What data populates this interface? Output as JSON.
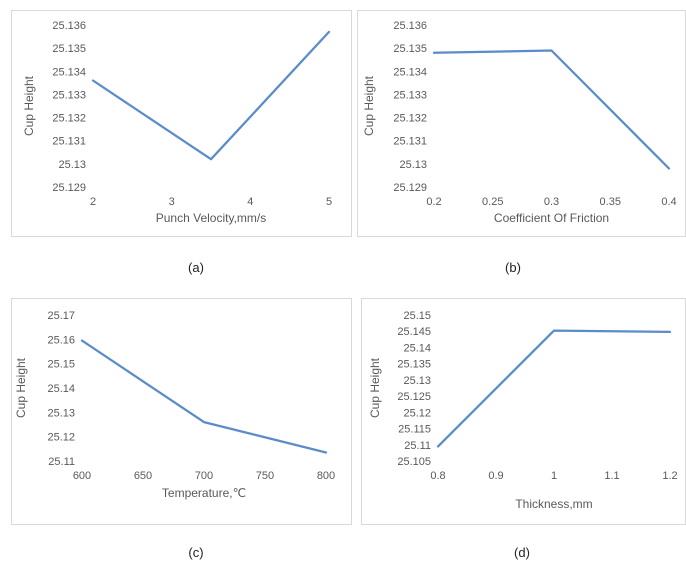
{
  "chart_data": [
    {
      "type": "line",
      "caption": "(a)",
      "xlabel": "Punch Velocity,mm/s",
      "ylabel": "Cup Height",
      "x": [
        2,
        3.5,
        5
      ],
      "series": [
        {
          "values": [
            25.1336,
            25.1302,
            25.1357
          ]
        }
      ],
      "xlim": [
        2,
        5
      ],
      "xticks": [
        2,
        3,
        4,
        5
      ],
      "ylim": [
        25.129,
        25.136
      ],
      "yticks": [
        "25.129",
        "25.13",
        "25.131",
        "25.132",
        "25.133",
        "25.134",
        "25.135",
        "25.136"
      ],
      "grid": false,
      "line_color": "#5b8bc9"
    },
    {
      "type": "line",
      "caption": "(b)",
      "xlabel": "Coefficient Of Friction",
      "ylabel": "Cup Height",
      "x": [
        0.2,
        0.3,
        0.4
      ],
      "series": [
        {
          "values": [
            25.1348,
            25.1349,
            25.1298
          ]
        }
      ],
      "xlim": [
        0.2,
        0.4
      ],
      "xticks": [
        "0.2",
        "0.25",
        "0.3",
        "0.35",
        "0.4"
      ],
      "ylim": [
        25.129,
        25.136
      ],
      "yticks": [
        "25.129",
        "25.13",
        "25.131",
        "25.132",
        "25.133",
        "25.134",
        "25.135",
        "25.136"
      ],
      "grid": false,
      "line_color": "#5b8bc9"
    },
    {
      "type": "line",
      "caption": "(c)",
      "xlabel": "Temperature,℃",
      "ylabel": "Cup Height",
      "x": [
        600,
        700,
        800
      ],
      "series": [
        {
          "values": [
            25.1595,
            25.126,
            25.1135
          ]
        }
      ],
      "xlim": [
        600,
        800
      ],
      "xticks": [
        "600",
        "650",
        "700",
        "750",
        "800"
      ],
      "ylim": [
        25.11,
        25.17
      ],
      "yticks": [
        "25.11",
        "25.12",
        "25.13",
        "25.14",
        "25.15",
        "25.16",
        "25.17"
      ],
      "grid": false,
      "line_color": "#5b8bc9"
    },
    {
      "type": "line",
      "caption": "(d)",
      "xlabel": "Thickness,mm",
      "ylabel": "Cup Height",
      "x": [
        0.8,
        1.0,
        1.2
      ],
      "series": [
        {
          "values": [
            25.1095,
            25.1452,
            25.1448
          ]
        }
      ],
      "xlim": [
        0.8,
        1.2
      ],
      "xticks": [
        "0.8",
        "0.9",
        "1",
        "1.1",
        "1.2"
      ],
      "ylim": [
        25.105,
        25.15
      ],
      "yticks": [
        "25.105",
        "25.11",
        "25.115",
        "25.12",
        "25.125",
        "25.13",
        "25.135",
        "25.14",
        "25.145",
        "25.15"
      ],
      "grid": false,
      "line_color": "#5b8bc9"
    }
  ]
}
